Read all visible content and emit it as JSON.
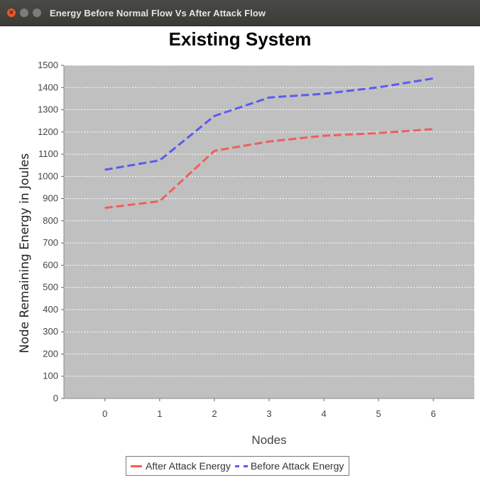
{
  "window": {
    "title": "Energy Before Normal Flow Vs After Attack Flow",
    "close_glyph": "×",
    "min_glyph": "",
    "max_glyph": ""
  },
  "colors": {
    "after": "#f25c5c",
    "before": "#5b5bf0",
    "plot_bg": "#c0c0c0",
    "grid": "#ffffff"
  },
  "chart_data": {
    "type": "line",
    "title": "Existing System",
    "xlabel": "Nodes",
    "ylabel": "Node Remaining Energy in Joules",
    "x": [
      0,
      1,
      2,
      3,
      4,
      5,
      6
    ],
    "xlim": [
      -0.75,
      6.75
    ],
    "ylim": [
      0,
      1500
    ],
    "yticks": [
      0,
      100,
      200,
      300,
      400,
      500,
      600,
      700,
      800,
      900,
      1000,
      1100,
      1200,
      1300,
      1400,
      1500
    ],
    "grid": true,
    "legend": "bottom",
    "series": [
      {
        "name": "After Attack Energy",
        "values": [
          858,
          888,
          1115,
          1157,
          1183,
          1195,
          1213
        ],
        "style": "dashed"
      },
      {
        "name": "Before Attack Energy",
        "values": [
          1030,
          1072,
          1272,
          1355,
          1372,
          1401,
          1441
        ],
        "style": "dashed"
      }
    ]
  }
}
